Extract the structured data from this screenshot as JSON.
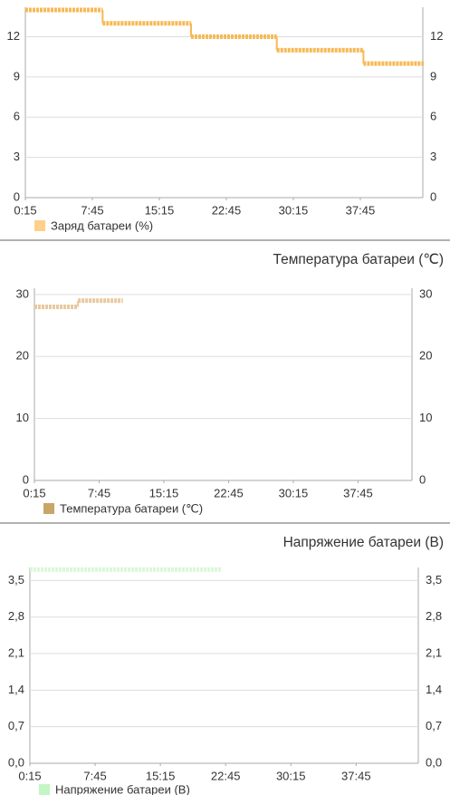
{
  "chart_data": [
    {
      "type": "step",
      "xlim": [
        0.25,
        44.75
      ],
      "ylim": [
        0,
        14.2
      ],
      "yticks": [
        0,
        3,
        6,
        9,
        12
      ],
      "xticks": [
        {
          "value": 0.25,
          "label": "0:15"
        },
        {
          "value": 7.75,
          "label": "7:45"
        },
        {
          "value": 15.25,
          "label": "15:15"
        },
        {
          "value": 22.75,
          "label": "22:45"
        },
        {
          "value": 30.25,
          "label": "30:15"
        },
        {
          "value": 37.75,
          "label": "37:45"
        }
      ],
      "grid": true,
      "series": [
        {
          "name": "Заряд батареи (%)",
          "color": "#f7b955",
          "legend_color": "#ffd08a",
          "x": [
            0.25,
            8.9,
            18.8,
            28.4,
            38.1,
            44.75
          ],
          "values": [
            14,
            13,
            12,
            11,
            10,
            10
          ]
        }
      ]
    },
    {
      "type": "step",
      "title": "Температура батареи (℃)",
      "xlim": [
        0.25,
        44
      ],
      "ylim": [
        0,
        31
      ],
      "yticks": [
        0,
        10,
        20,
        30
      ],
      "xticks": [
        {
          "value": 0.25,
          "label": "0:15"
        },
        {
          "value": 7.75,
          "label": "7:45"
        },
        {
          "value": 15.25,
          "label": "15:15"
        },
        {
          "value": 22.75,
          "label": "22:45"
        },
        {
          "value": 30.25,
          "label": "30:15"
        },
        {
          "value": 37.75,
          "label": "37:45"
        }
      ],
      "grid": true,
      "series": [
        {
          "name": "Температура батареи (℃)",
          "color": "#e8c9a0",
          "legend_color": "#c9a56a",
          "x": [
            0.25,
            5.3,
            10.4
          ],
          "values": [
            28,
            29,
            29
          ]
        }
      ]
    },
    {
      "type": "step",
      "title": "Напряжение батареи (В)",
      "xlim": [
        0.25,
        44.9
      ],
      "ylim": [
        0,
        3.75
      ],
      "yticks": [
        {
          "value": 0,
          "label": "0,0"
        },
        {
          "value": 0.7,
          "label": "0,7"
        },
        {
          "value": 1.4,
          "label": "1,4"
        },
        {
          "value": 2.1,
          "label": "2,1"
        },
        {
          "value": 2.8,
          "label": "2,8"
        },
        {
          "value": 3.5,
          "label": "3,5"
        }
      ],
      "xticks": [
        {
          "value": 0.25,
          "label": "0:15"
        },
        {
          "value": 7.75,
          "label": "7:45"
        },
        {
          "value": 15.25,
          "label": "15:15"
        },
        {
          "value": 22.75,
          "label": "22:45"
        },
        {
          "value": 30.25,
          "label": "30:15"
        },
        {
          "value": 37.75,
          "label": "37:45"
        }
      ],
      "grid": true,
      "series": [
        {
          "name": "Напряжение батареи (В)",
          "color": "#d9f7d9",
          "legend_color": "#c4f5c4",
          "x": [
            0.25,
            22.1
          ],
          "values": [
            3.71,
            3.71
          ]
        }
      ]
    }
  ]
}
